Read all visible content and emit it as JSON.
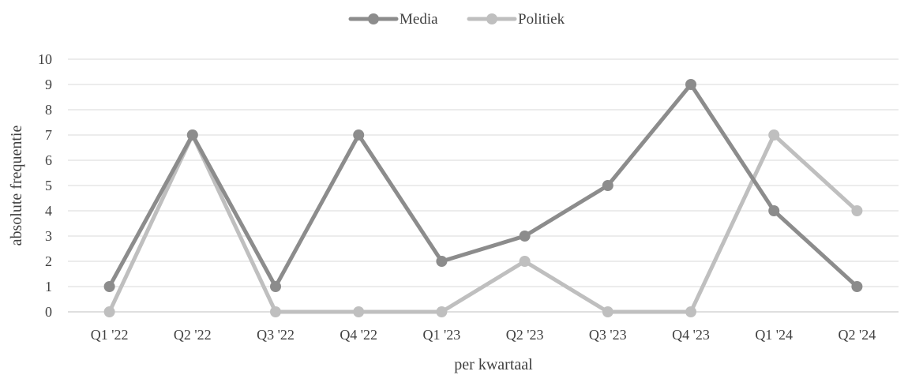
{
  "chart_data": {
    "type": "line",
    "title": "",
    "xlabel": "per kwartaal",
    "ylabel": "absolute frequentie",
    "categories": [
      "Q1 '22",
      "Q2 '22",
      "Q3 '22",
      "Q4 '22",
      "Q1 '23",
      "Q2 '23",
      "Q3 '23",
      "Q4 '23",
      "Q1 '24",
      "Q2 '24"
    ],
    "ylim": [
      0,
      10
    ],
    "yticks": [
      "0",
      "1",
      "2",
      "3",
      "4",
      "5",
      "6",
      "7",
      "8",
      "9",
      "10"
    ],
    "grid": true,
    "legend_position": "top-center",
    "series": [
      {
        "name": "Media",
        "color": "#8c8c8c",
        "values": [
          1,
          7,
          1,
          7,
          2,
          3,
          5,
          9,
          4,
          1
        ]
      },
      {
        "name": "Politiek",
        "color": "#bfbfbf",
        "values": [
          0,
          7,
          0,
          0,
          0,
          2,
          0,
          0,
          7,
          4
        ]
      }
    ]
  }
}
